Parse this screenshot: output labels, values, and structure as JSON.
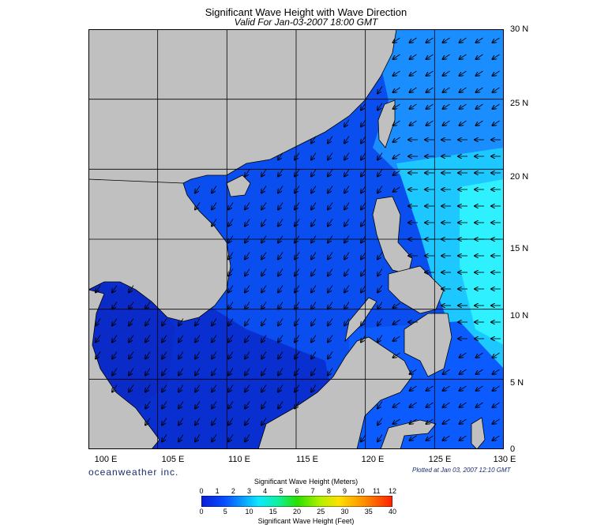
{
  "title": "Significant Wave Height with Wave Direction",
  "subtitle": "Valid For Jan-03-2007 18:00 GMT",
  "lat_labels": [
    "30 N",
    "25 N",
    "20 N",
    "15 N",
    "10 N",
    "5 N",
    "0"
  ],
  "lon_labels": [
    "100 E",
    "105 E",
    "110 E",
    "115 E",
    "120 E",
    "125 E",
    "130 E"
  ],
  "brand": "oceanweather inc.",
  "plotted": "Plotted at Jan 03, 2007 12:10 GMT",
  "colorbar": {
    "title_meters": "Significant Wave Height (Meters)",
    "title_feet": "Significant Wave Height (Feet)",
    "meters_ticks": [
      "0",
      "1",
      "2",
      "3",
      "4",
      "5",
      "6",
      "7",
      "8",
      "9",
      "10",
      "11",
      "12"
    ],
    "feet_ticks": [
      "0",
      "5",
      "10",
      "15",
      "20",
      "25",
      "30",
      "35",
      "40"
    ]
  },
  "map": {
    "lon_range": [
      100,
      130
    ],
    "lat_range": [
      0,
      30
    ],
    "land_color": "#c0c0c0",
    "grid": true,
    "arrows": "wave direction, predominantly from NE toward SW; from E toward W in the open Pacific east of the Philippines"
  },
  "colors": {
    "deep_blue": "#0a2fd0",
    "mid_blue": "#0b5bff",
    "light_blue": "#1aa0ff",
    "cyan": "#20e6ff",
    "dark_navy": "#0a1470"
  }
}
